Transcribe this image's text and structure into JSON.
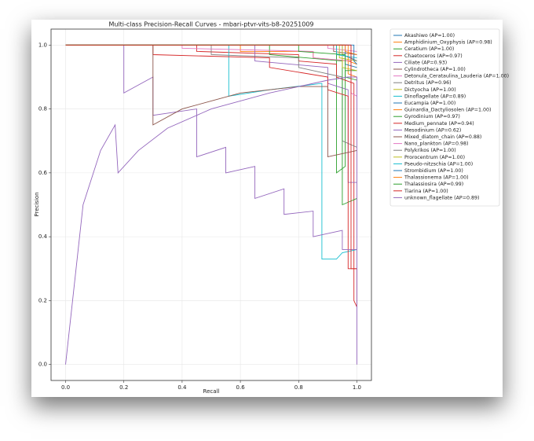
{
  "chart_data": {
    "type": "line",
    "title": "Multi-class Precision-Recall Curves - mbari-ptvr-vits-b8-20251009",
    "x_label": "Recall",
    "y_label": "Precision",
    "xlim": [
      -0.05,
      1.05
    ],
    "ylim": [
      -0.05,
      1.05
    ],
    "xticks": [
      {
        "value": 0,
        "label": "0.0"
      },
      0.2,
      0.4,
      0.6,
      0.8,
      {
        "value": 1,
        "label": "1.0"
      }
    ],
    "yticks": [
      {
        "value": 0,
        "label": "0.0"
      },
      0.2,
      0.4,
      0.6,
      0.8,
      {
        "value": 1,
        "label": "1.0"
      }
    ],
    "grid": true,
    "legend": "outside-right",
    "series": [
      {
        "name": "Akashiwo (AP=1.00)",
        "color": "#1f77b4",
        "x": [
          0,
          0.95,
          0.95,
          1.0
        ],
        "values": [
          1,
          1,
          0.97,
          0.95
        ]
      },
      {
        "name": "Amphidinium_Oxyphysis (AP=0.98)",
        "color": "#ff7f0e",
        "x": [
          0,
          0.6,
          0.6,
          0.85,
          0.85,
          0.97,
          0.97,
          1.0
        ],
        "values": [
          1,
          1,
          0.98,
          0.98,
          0.96,
          0.95,
          0.91,
          0.9
        ]
      },
      {
        "name": "Ceratium (AP=1.00)",
        "color": "#2ca02c",
        "x": [
          0,
          0.93,
          0.93,
          0.96,
          0.96,
          1.0
        ],
        "values": [
          1,
          1,
          0.6,
          0.62,
          0.92,
          0.92
        ]
      },
      {
        "name": "Chaetoceros (AP=0.97)",
        "color": "#d62728",
        "x": [
          0,
          0.45,
          0.45,
          0.8,
          0.8,
          0.93,
          0.93,
          0.99,
          0.99,
          1.0
        ],
        "values": [
          1,
          1,
          0.98,
          0.97,
          0.95,
          0.94,
          0.9,
          0.88,
          0.2,
          0.18
        ]
      },
      {
        "name": "Ciliate (AP=0.93)",
        "color": "#9467bd",
        "x": [
          0,
          0.65,
          0.65,
          0.9,
          0.9,
          0.97,
          0.97,
          1.0
        ],
        "values": [
          1,
          1,
          0.95,
          0.93,
          0.88,
          0.86,
          0.57,
          0.57
        ]
      },
      {
        "name": "Cylindrotheca (AP=1.00)",
        "color": "#8c564b",
        "x": [
          0,
          0.92,
          0.92,
          1.0
        ],
        "values": [
          1,
          1,
          0.98,
          0.97
        ]
      },
      {
        "name": "Detonula_Cerataulina_Lauderia (AP=1.00)",
        "color": "#e377c2",
        "x": [
          0,
          0.9,
          0.9,
          1.0
        ],
        "values": [
          1,
          1,
          0.99,
          0.98
        ]
      },
      {
        "name": "Detritus (AP=0.96)",
        "color": "#7f7f7f",
        "x": [
          0,
          0.5,
          0.5,
          0.8,
          0.8,
          0.95,
          0.95,
          1.0
        ],
        "values": [
          1,
          1,
          0.97,
          0.96,
          0.93,
          0.9,
          0.7,
          0.68
        ]
      },
      {
        "name": "Dictyocha (AP=1.00)",
        "color": "#bcbd22",
        "x": [
          0,
          0.94,
          0.94,
          1.0
        ],
        "values": [
          1,
          1,
          0.96,
          0.95
        ]
      },
      {
        "name": "Dinoflagellate (AP=0.89)",
        "color": "#17becf",
        "x": [
          0,
          0.56,
          0.56,
          0.7,
          0.88,
          0.88,
          0.93,
          0.95,
          1.0
        ],
        "values": [
          1,
          1,
          0.84,
          0.86,
          0.88,
          0.33,
          0.33,
          0.35,
          0.36
        ]
      },
      {
        "name": "Eucampia (AP=1.00)",
        "color": "#1f77b4",
        "x": [
          0,
          0.96,
          0.96,
          1.0
        ],
        "values": [
          1,
          1,
          0.94,
          0.93
        ]
      },
      {
        "name": "Guinardia_Dactyliosolen (AP=1.00)",
        "color": "#ff7f0e",
        "x": [
          0,
          0.97,
          0.97,
          1.0
        ],
        "values": [
          1,
          1,
          0.95,
          0.94
        ]
      },
      {
        "name": "Gyrodinium (AP=0.97)",
        "color": "#2ca02c",
        "x": [
          0,
          0.7,
          0.7,
          0.95,
          0.95,
          1.0
        ],
        "values": [
          1,
          1,
          0.97,
          0.95,
          0.5,
          0.52
        ]
      },
      {
        "name": "Medium_pennate (AP=0.94)",
        "color": "#d62728",
        "x": [
          0,
          0.3,
          0.3,
          0.7,
          0.7,
          0.9,
          0.9,
          0.97,
          0.97,
          1.0
        ],
        "values": [
          1,
          1,
          0.97,
          0.96,
          0.93,
          0.9,
          0.86,
          0.84,
          0.3,
          0.3
        ]
      },
      {
        "name": "Mesodinium (AP=0.62)",
        "color": "#9467bd",
        "x": [
          0,
          0.2,
          0.2,
          0.3,
          0.3,
          0.45,
          0.45,
          0.55,
          0.55,
          0.65,
          0.65,
          0.75,
          0.75,
          0.85,
          0.85,
          0.95,
          0.95,
          1.0
        ],
        "values": [
          1,
          1,
          0.85,
          0.9,
          0.78,
          0.8,
          0.65,
          0.68,
          0.6,
          0.62,
          0.52,
          0.55,
          0.47,
          0.48,
          0.4,
          0.42,
          0.36,
          0.36
        ]
      },
      {
        "name": "Mixed_diatom_chain (AP=0.88)",
        "color": "#8c564b",
        "x": [
          0,
          0.3,
          0.3,
          0.4,
          0.6,
          0.8,
          0.9,
          0.9,
          1.0
        ],
        "values": [
          1,
          1,
          0.75,
          0.8,
          0.85,
          0.87,
          0.87,
          0.65,
          0.67
        ]
      },
      {
        "name": "Nano_plankton (AP=0.98)",
        "color": "#e377c2",
        "x": [
          0,
          0.4,
          0.4,
          0.85,
          0.85,
          0.98,
          0.98,
          1.0
        ],
        "values": [
          1,
          1,
          0.99,
          0.98,
          0.96,
          0.95,
          0.85,
          0.84
        ]
      },
      {
        "name": "Polykrikos (AP=1.00)",
        "color": "#7f7f7f",
        "x": [
          0,
          0.98,
          0.98,
          1.0
        ],
        "values": [
          1,
          1,
          0.96,
          0.95
        ]
      },
      {
        "name": "Prorocentrum (AP=1.00)",
        "color": "#bcbd22",
        "x": [
          0,
          0.95,
          0.95,
          1.0
        ],
        "values": [
          1,
          1,
          0.93,
          0.92
        ]
      },
      {
        "name": "Pseudo-nitzschia (AP=1.00)",
        "color": "#17becf",
        "x": [
          0,
          0.93,
          0.93,
          1.0
        ],
        "values": [
          1,
          1,
          0.97,
          0.96
        ]
      },
      {
        "name": "Strombidium (AP=1.00)",
        "color": "#1f77b4",
        "x": [
          0,
          0.99,
          0.99,
          1.0
        ],
        "values": [
          1,
          1,
          0.95,
          0.94
        ]
      },
      {
        "name": "Thalassionema (AP=1.00)",
        "color": "#ff7f0e",
        "x": [
          0,
          0.96,
          0.96,
          1.0
        ],
        "values": [
          1,
          1,
          0.98,
          0.97
        ]
      },
      {
        "name": "Thalassiosira (AP=0.99)",
        "color": "#2ca02c",
        "x": [
          0,
          0.8,
          0.8,
          0.96,
          0.96,
          1.0
        ],
        "values": [
          1,
          1,
          0.98,
          0.97,
          0.9,
          0.89
        ]
      },
      {
        "name": "Tiarina (AP=1.00)",
        "color": "#d62728",
        "x": [
          0,
          0.98,
          0.98,
          1.0,
          1.0
        ],
        "values": [
          1,
          1,
          0.3,
          0.3,
          0.18
        ]
      },
      {
        "name": "unknown_flagellate (AP=0.89)",
        "color": "#9467bd",
        "x": [
          0,
          0.06,
          0.12,
          0.17,
          0.18,
          0.25,
          0.35,
          0.5,
          0.7,
          0.9,
          0.97,
          1.0,
          1.0
        ],
        "values": [
          0,
          0.5,
          0.67,
          0.75,
          0.6,
          0.67,
          0.74,
          0.8,
          0.85,
          0.89,
          0.9,
          0.9,
          0
        ]
      }
    ]
  }
}
